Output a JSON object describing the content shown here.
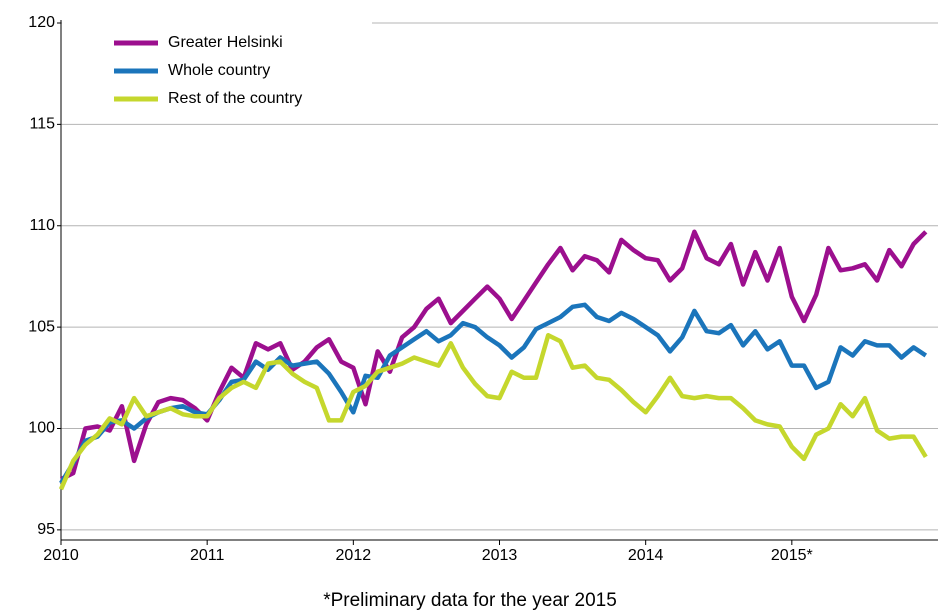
{
  "chart_data": {
    "type": "line",
    "footnote": "*Preliminary data for the year 2015",
    "categories": [
      "2010",
      null,
      null,
      null,
      null,
      null,
      null,
      null,
      null,
      null,
      null,
      null,
      "2011",
      null,
      null,
      null,
      null,
      null,
      null,
      null,
      null,
      null,
      null,
      null,
      "2012",
      null,
      null,
      null,
      null,
      null,
      null,
      null,
      null,
      null,
      null,
      null,
      "2013",
      null,
      null,
      null,
      null,
      null,
      null,
      null,
      null,
      null,
      null,
      null,
      "2014",
      null,
      null,
      null,
      null,
      null,
      null,
      null,
      null,
      null,
      null,
      null,
      "2015*",
      null,
      null,
      null,
      null,
      null,
      null,
      null,
      null,
      null,
      null,
      null
    ],
    "series": [
      {
        "name": "Greater Helsinki",
        "color": "#9c0f8e",
        "values": [
          97.5,
          97.8,
          100.0,
          100.1,
          99.9,
          101.1,
          98.4,
          100.2,
          101.3,
          101.5,
          101.4,
          101.0,
          100.4,
          101.8,
          103.0,
          102.5,
          104.2,
          103.9,
          104.2,
          102.9,
          103.3,
          104.0,
          104.4,
          103.3,
          103.0,
          101.2,
          103.8,
          102.8,
          104.5,
          105.0,
          105.9,
          106.4,
          105.2,
          105.8,
          106.4,
          107.0,
          106.4,
          105.4,
          106.3,
          107.2,
          108.1,
          108.9,
          107.8,
          108.5,
          108.3,
          107.7,
          109.3,
          108.8,
          108.4,
          108.3,
          107.3,
          107.9,
          109.7,
          108.4,
          108.1,
          109.1,
          107.1,
          108.7,
          107.3,
          108.9,
          106.5,
          105.3,
          106.6,
          108.9,
          107.8,
          107.9,
          108.1,
          107.3,
          108.8,
          108.0,
          109.1,
          109.7
        ]
      },
      {
        "name": "Whole country",
        "color": "#1b75bb",
        "values": [
          97.3,
          98.3,
          99.4,
          99.6,
          100.3,
          100.4,
          100.0,
          100.5,
          100.8,
          101.0,
          101.1,
          100.8,
          100.7,
          101.4,
          102.3,
          102.4,
          103.3,
          102.9,
          103.5,
          103.1,
          103.2,
          103.3,
          102.7,
          101.8,
          100.8,
          102.6,
          102.5,
          103.6,
          104.0,
          104.4,
          104.8,
          104.3,
          104.6,
          105.2,
          105.0,
          104.5,
          104.1,
          103.5,
          104.0,
          104.9,
          105.2,
          105.5,
          106.0,
          106.1,
          105.5,
          105.3,
          105.7,
          105.4,
          105.0,
          104.6,
          103.8,
          104.5,
          105.8,
          104.8,
          104.7,
          105.1,
          104.1,
          104.8,
          103.9,
          104.3,
          103.1,
          103.1,
          102.0,
          102.3,
          104.0,
          103.6,
          104.3,
          104.1,
          104.1,
          103.5,
          104.0,
          103.6
        ]
      },
      {
        "name": "Rest of the country",
        "color": "#c5d72d",
        "values": [
          97.0,
          98.4,
          99.2,
          99.7,
          100.5,
          100.2,
          101.5,
          100.6,
          100.8,
          101.0,
          100.7,
          100.6,
          100.6,
          101.5,
          102.0,
          102.3,
          102.0,
          103.2,
          103.3,
          102.7,
          102.3,
          102.0,
          100.4,
          100.4,
          101.8,
          102.1,
          102.8,
          103.0,
          103.2,
          103.5,
          103.3,
          103.1,
          104.2,
          103.0,
          102.2,
          101.6,
          101.5,
          102.8,
          102.5,
          102.5,
          104.6,
          104.3,
          103.0,
          103.1,
          102.5,
          102.4,
          101.9,
          101.3,
          100.8,
          101.6,
          102.5,
          101.6,
          101.5,
          101.6,
          101.5,
          101.5,
          101.0,
          100.4,
          100.2,
          100.1,
          99.1,
          98.5,
          99.7,
          100.0,
          101.2,
          100.6,
          101.5,
          99.9,
          99.5,
          99.6,
          99.6,
          98.6
        ]
      }
    ],
    "ylim": [
      94.5,
      120
    ],
    "yticks": [
      95,
      100,
      105,
      110,
      115,
      120
    ],
    "grid": true,
    "legend": "top-left"
  }
}
